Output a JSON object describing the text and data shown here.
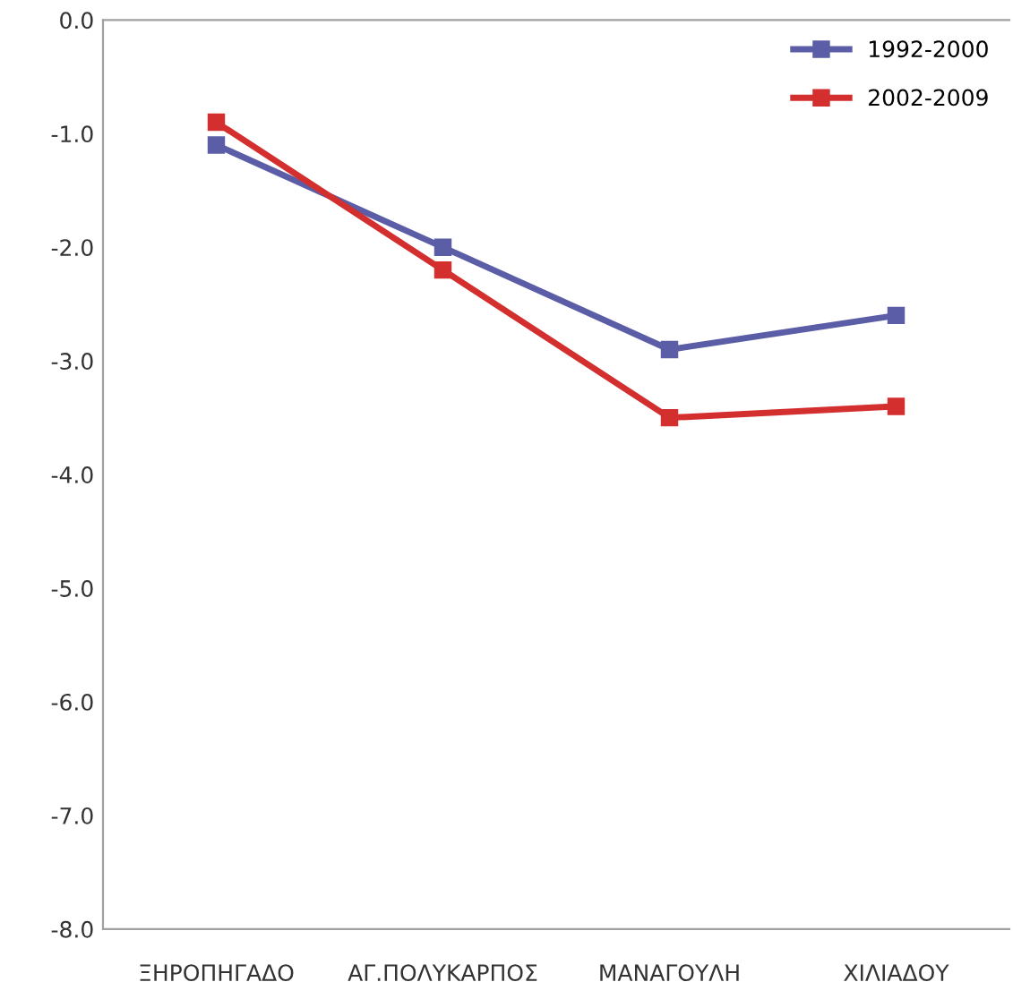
{
  "chart_data": {
    "type": "line",
    "categories": [
      "ΞΗΡΟΠΗΓΑΔΟ",
      "ΑΓ.ΠΟΛΥΚΑΡΠΟΣ",
      "ΜΑΝΑΓΟΥΛΗ",
      "ΧΙΛΙΑΔΟΥ"
    ],
    "series": [
      {
        "name": "1992-2000",
        "color": "#5b5ea6",
        "values": [
          -1.1,
          -2.0,
          -2.9,
          -2.6
        ]
      },
      {
        "name": "2002-2009",
        "color": "#d42f2f",
        "values": [
          -0.9,
          -2.2,
          -3.5,
          -3.4
        ]
      }
    ],
    "ylim": [
      -8.0,
      0.0
    ],
    "yticks": [
      {
        "value": -8,
        "label": "-8.0"
      },
      {
        "value": -7,
        "label": "-7.0"
      },
      {
        "value": -6,
        "label": "-6.0"
      },
      {
        "value": -5,
        "label": "-5.0"
      },
      {
        "value": -4,
        "label": "-4.0"
      },
      {
        "value": -3,
        "label": "-3.0"
      },
      {
        "value": -2,
        "label": "-2.0"
      },
      {
        "value": -1,
        "label": "-1.0"
      },
      {
        "value": 0,
        "label": "0.0"
      }
    ],
    "marker": "square",
    "line_style": "solid",
    "legend": "top right",
    "grid": false
  }
}
